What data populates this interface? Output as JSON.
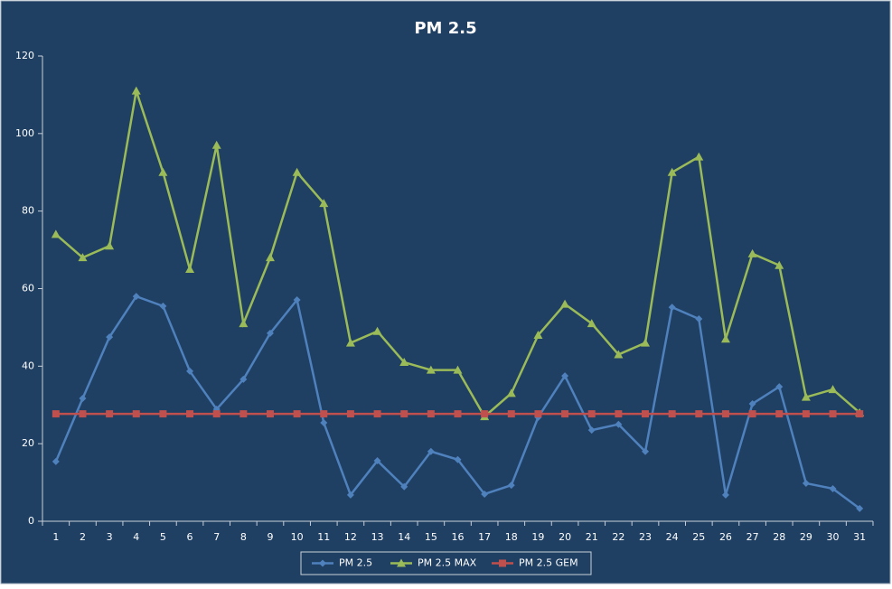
{
  "chart_data": {
    "type": "line",
    "title": "PM 2.5",
    "categories": [
      "1",
      "2",
      "3",
      "4",
      "5",
      "6",
      "7",
      "8",
      "9",
      "10",
      "11",
      "12",
      "13",
      "14",
      "15",
      "16",
      "17",
      "18",
      "19",
      "20",
      "21",
      "22",
      "23",
      "24",
      "25",
      "26",
      "27",
      "28",
      "29",
      "30",
      "31"
    ],
    "series": [
      {
        "name": "PM 2.5",
        "color": "#4f81bd",
        "marker": "diamond",
        "values": [
          15.4,
          31.7,
          47.5,
          58,
          55.5,
          38.7,
          28.9,
          36.6,
          48.5,
          57.1,
          25.4,
          6.8,
          15.6,
          8.9,
          18,
          15.9,
          7,
          9.3,
          26.8,
          37.5,
          23.5,
          25,
          18,
          55.2,
          52.2,
          6.8,
          30.3,
          34.7,
          9.8,
          8.4,
          3.3
        ]
      },
      {
        "name": "PM 2.5 MAX",
        "color": "#9bbb59",
        "marker": "triangle",
        "values": [
          74,
          68,
          71,
          111,
          90,
          65,
          97,
          51,
          68,
          90,
          82,
          46,
          49,
          41,
          39,
          39,
          27,
          33,
          48,
          56,
          51,
          43,
          46,
          90,
          94,
          47,
          69,
          66,
          32,
          34,
          28
        ]
      },
      {
        "name": "PM 2.5 GEM",
        "color": "#c0504d",
        "marker": "square",
        "values": [
          27.7,
          27.7,
          27.7,
          27.7,
          27.7,
          27.7,
          27.7,
          27.7,
          27.7,
          27.7,
          27.7,
          27.7,
          27.7,
          27.7,
          27.7,
          27.7,
          27.7,
          27.7,
          27.7,
          27.7,
          27.7,
          27.7,
          27.7,
          27.7,
          27.7,
          27.7,
          27.7,
          27.7,
          27.7,
          27.7,
          27.7
        ]
      }
    ],
    "ylim": [
      0,
      120
    ],
    "yticks": [
      0,
      20,
      40,
      60,
      80,
      100,
      120
    ],
    "legend": "bottom"
  }
}
